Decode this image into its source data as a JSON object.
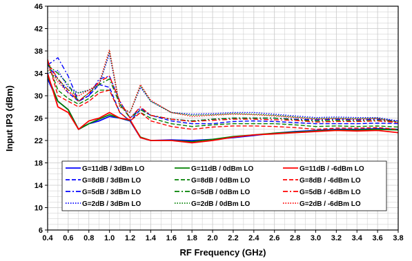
{
  "chart_data": {
    "type": "line",
    "xlabel": "RF Frequency (GHz)",
    "ylabel": "Input IP3 (dBm)",
    "xlim": [
      0.4,
      3.8
    ],
    "ylim": [
      6,
      46
    ],
    "xticks": [
      "0.4",
      "0.6",
      "0.8",
      "1.0",
      "1.2",
      "1.4",
      "1.6",
      "1.8",
      "2.0",
      "2.2",
      "2.4",
      "2.6",
      "2.8",
      "3.0",
      "3.2",
      "3.4",
      "3.6",
      "3.8"
    ],
    "yticks": [
      "6",
      "10",
      "14",
      "18",
      "22",
      "26",
      "30",
      "34",
      "38",
      "42",
      "46"
    ],
    "grid": true,
    "legend_position": "bottom-inside",
    "colors": {
      "3dBm": "#0000ff",
      "0dBm": "#008000",
      "-6dBm": "#ff0000"
    },
    "x": [
      0.4,
      0.5,
      0.6,
      0.7,
      0.8,
      0.9,
      1.0,
      1.1,
      1.2,
      1.3,
      1.4,
      1.6,
      1.8,
      2.0,
      2.2,
      2.4,
      2.6,
      2.8,
      3.0,
      3.2,
      3.4,
      3.6,
      3.8
    ],
    "series": [
      {
        "name": "G=11dB / 3dBm LO",
        "color": "#0000ff",
        "dash": "solid",
        "values": [
          33,
          29,
          27.5,
          24,
          25,
          25.5,
          26.3,
          26,
          25.5,
          22.5,
          22,
          22.1,
          22,
          22.2,
          22.5,
          22.9,
          23.3,
          23.6,
          23.8,
          24,
          24,
          24.1,
          24
        ]
      },
      {
        "name": "G=11dB / 0dBm LO",
        "color": "#008000",
        "dash": "solid",
        "values": [
          33.5,
          29,
          27.5,
          24,
          25,
          25.8,
          26.6,
          26,
          25.6,
          22.6,
          22,
          22,
          21.8,
          22.2,
          22.7,
          23,
          23.3,
          23.5,
          23.7,
          23.9,
          23.9,
          24,
          23.9
        ]
      },
      {
        "name": "G=11dB / -6dBm LO",
        "color": "#ff0000",
        "dash": "solid",
        "values": [
          34,
          28,
          27,
          24,
          25.5,
          26,
          27,
          26,
          25.7,
          22.5,
          22,
          22,
          21.6,
          22,
          22.6,
          23,
          23.2,
          23.4,
          23.6,
          23.8,
          23.7,
          23.8,
          23.4
        ]
      },
      {
        "name": "G=8dB / 3dBm LO",
        "color": "#0000ff",
        "dash": "dash",
        "values": [
          35.5,
          33,
          30.5,
          29,
          30,
          32,
          31.5,
          27,
          25.5,
          27.5,
          26.5,
          25.5,
          25,
          25,
          25.4,
          25.5,
          25.4,
          25.2,
          25,
          25,
          25,
          25.1,
          25
        ]
      },
      {
        "name": "G=8dB / 0dBm LO",
        "color": "#008000",
        "dash": "dash",
        "values": [
          36,
          31,
          29.5,
          28.5,
          29.5,
          31,
          31,
          27,
          25.5,
          27,
          26,
          25,
          24.5,
          24.8,
          25,
          25,
          25,
          24.8,
          24.5,
          24.6,
          24.5,
          24.6,
          24.4
        ]
      },
      {
        "name": "G=8dB / -6dBm LO",
        "color": "#ff0000",
        "dash": "dash",
        "values": [
          36.5,
          30,
          29,
          28,
          29,
          30.5,
          31,
          27,
          25.5,
          27,
          25.5,
          24.5,
          24,
          24.4,
          24.6,
          24.6,
          24.5,
          24.3,
          24,
          24.2,
          24.2,
          24.3,
          24
        ]
      },
      {
        "name": "G=5dB / 3dBm LO",
        "color": "#0000ff",
        "dash": "dashdot",
        "values": [
          35.5,
          36.8,
          33.5,
          29,
          30,
          33,
          33.5,
          29,
          26,
          27.8,
          26.5,
          25.8,
          25.5,
          25.8,
          26,
          26,
          26,
          25.8,
          25.7,
          25.8,
          25.7,
          25.8,
          25.5
        ]
      },
      {
        "name": "G=5dB / 0dBm LO",
        "color": "#008000",
        "dash": "dashdot",
        "values": [
          35.5,
          34,
          32,
          29,
          30.5,
          32,
          33,
          28.5,
          26,
          27.5,
          26.5,
          25.8,
          25.5,
          25.8,
          26,
          26,
          26,
          25.7,
          25.5,
          25.6,
          25.5,
          25.6,
          25.3
        ]
      },
      {
        "name": "G=5dB / -6dBm LO",
        "color": "#ff0000",
        "dash": "dashdot",
        "values": [
          36,
          33,
          31,
          29,
          30.5,
          32.5,
          33.5,
          29,
          26,
          28,
          26.5,
          25.8,
          25.4,
          25.6,
          25.8,
          25.8,
          25.7,
          25.6,
          25.3,
          25.4,
          25.4,
          25.5,
          25.2
        ]
      },
      {
        "name": "G=2dB / 3dBm LO",
        "color": "#0000ff",
        "dash": "dot",
        "values": [
          34,
          34.5,
          31.5,
          30.5,
          31,
          32,
          37.5,
          28,
          27,
          31.5,
          29,
          27,
          26.7,
          26.8,
          27,
          27,
          26.7,
          26.4,
          26.1,
          26.2,
          26.1,
          26.1,
          25.5
        ]
      },
      {
        "name": "G=2dB / 0dBm LO",
        "color": "#008000",
        "dash": "dot",
        "values": [
          34.5,
          33,
          31,
          30.5,
          31,
          32,
          38,
          28,
          27,
          31.8,
          29,
          27,
          26.5,
          26.6,
          26.8,
          26.7,
          26.5,
          26.2,
          25.9,
          26,
          25.9,
          26,
          25.3
        ]
      },
      {
        "name": "G=2dB / -6dBm LO",
        "color": "#ff0000",
        "dash": "dot",
        "values": [
          35,
          32.5,
          30.5,
          30,
          31,
          32.2,
          38.2,
          28,
          27,
          32,
          29.2,
          27,
          26.3,
          26.5,
          26.7,
          26.6,
          26.4,
          26.1,
          25.8,
          25.9,
          25.8,
          25.9,
          25.2
        ]
      }
    ]
  }
}
